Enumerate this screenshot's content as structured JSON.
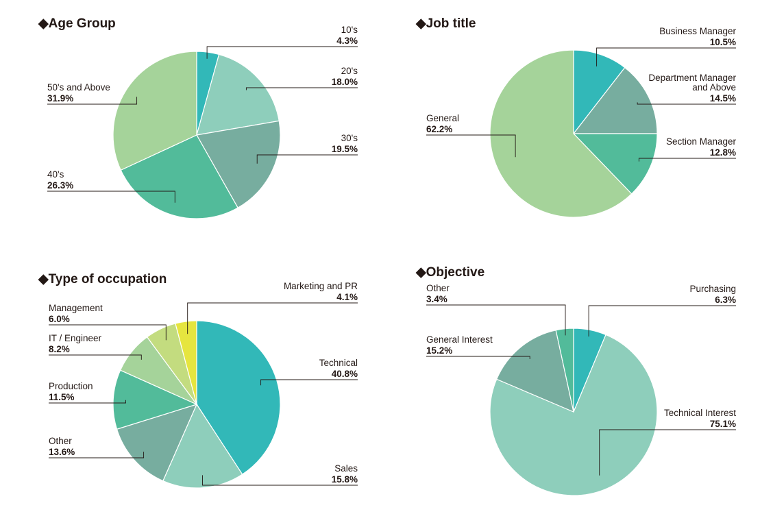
{
  "colors": {
    "teal": "#32b8b8",
    "mint": "#8ecebb",
    "sage": "#77ad9f",
    "green": "#52bb9a",
    "light_green": "#a5d39a",
    "pale_green": "#c3dc7f",
    "yellow": "#e6e53f",
    "text": "#231815"
  },
  "chart_data": [
    {
      "type": "pie",
      "title": "◆Age Group",
      "slices": [
        {
          "label": "10's",
          "value": 4.3,
          "display": "4.3%",
          "color": "#32b8b8"
        },
        {
          "label": "20's",
          "value": 18.0,
          "display": "18.0%",
          "color": "#8ecebb"
        },
        {
          "label": "30's",
          "value": 19.5,
          "display": "19.5%",
          "color": "#77ad9f"
        },
        {
          "label": "40's",
          "value": 26.3,
          "display": "26.3%",
          "color": "#52bb9a"
        },
        {
          "label": "50's and Above",
          "value": 31.9,
          "display": "31.9%",
          "color": "#a5d39a"
        }
      ]
    },
    {
      "type": "pie",
      "title": "◆Job title",
      "slices": [
        {
          "label": "Business Manager",
          "value": 10.5,
          "display": "10.5%",
          "color": "#32b8b8"
        },
        {
          "label": "Department Manager\nand Above",
          "value": 14.5,
          "display": "14.5%",
          "color": "#77ad9f"
        },
        {
          "label": "Section Manager",
          "value": 12.8,
          "display": "12.8%",
          "color": "#52bb9a"
        },
        {
          "label": "General",
          "value": 62.2,
          "display": "62.2%",
          "color": "#a5d39a"
        }
      ]
    },
    {
      "type": "pie",
      "title": "◆Type of occupation",
      "slices": [
        {
          "label": "Technical",
          "value": 40.8,
          "display": "40.8%",
          "color": "#32b8b8"
        },
        {
          "label": "Sales",
          "value": 15.8,
          "display": "15.8%",
          "color": "#8ecebb"
        },
        {
          "label": "Other",
          "value": 13.6,
          "display": "13.6%",
          "color": "#77ad9f"
        },
        {
          "label": "Production",
          "value": 11.5,
          "display": "11.5%",
          "color": "#52bb9a"
        },
        {
          "label": "IT / Engineer",
          "value": 8.2,
          "display": "8.2%",
          "color": "#a5d39a"
        },
        {
          "label": "Management",
          "value": 6.0,
          "display": "6.0%",
          "color": "#c3dc7f"
        },
        {
          "label": "Marketing and PR",
          "value": 4.1,
          "display": "4.1%",
          "color": "#e6e53f"
        }
      ]
    },
    {
      "type": "pie",
      "title": "◆Objective",
      "slices": [
        {
          "label": "Purchasing",
          "value": 6.3,
          "display": "6.3%",
          "color": "#32b8b8"
        },
        {
          "label": "Technical Interest",
          "value": 75.1,
          "display": "75.1%",
          "color": "#8ecebb"
        },
        {
          "label": "General Interest",
          "value": 15.2,
          "display": "15.2%",
          "color": "#77ad9f"
        },
        {
          "label": "Other",
          "value": 3.4,
          "display": "3.4%",
          "color": "#52bb9a"
        }
      ]
    }
  ]
}
